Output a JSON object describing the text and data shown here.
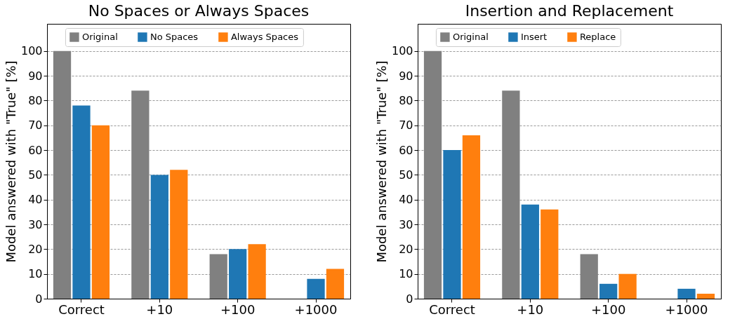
{
  "chart_data": [
    {
      "type": "bar",
      "title": "No Spaces or Always Spaces",
      "ylabel": "Model answered with \"True\" [%]",
      "categories": [
        "Correct",
        "+10",
        "+100",
        "+1000"
      ],
      "series": [
        {
          "name": "Original",
          "color": "#808080",
          "values": [
            100,
            84,
            18,
            0
          ]
        },
        {
          "name": "No Spaces",
          "color": "#1f77b4",
          "values": [
            78,
            50,
            20,
            8
          ]
        },
        {
          "name": "Always Spaces",
          "color": "#ff7f0e",
          "values": [
            70,
            52,
            22,
            12
          ]
        }
      ],
      "ylim": [
        0,
        111
      ],
      "yticks": [
        0,
        10,
        20,
        30,
        40,
        50,
        60,
        70,
        80,
        90,
        100
      ],
      "grid": "y",
      "legend": "top",
      "line_style": "dashed"
    },
    {
      "type": "bar",
      "title": "Insertion and Replacement",
      "ylabel": "Model answered with \"True\" [%]",
      "categories": [
        "Correct",
        "+10",
        "+100",
        "+1000"
      ],
      "series": [
        {
          "name": "Original",
          "color": "#808080",
          "values": [
            100,
            84,
            18,
            0
          ]
        },
        {
          "name": "Insert",
          "color": "#1f77b4",
          "values": [
            60,
            38,
            6,
            4
          ]
        },
        {
          "name": "Replace",
          "color": "#ff7f0e",
          "values": [
            66,
            36,
            10,
            2
          ]
        }
      ],
      "ylim": [
        0,
        111
      ],
      "yticks": [
        0,
        10,
        20,
        30,
        40,
        50,
        60,
        70,
        80,
        90,
        100
      ],
      "grid": "y",
      "legend": "top",
      "line_style": "dashed"
    }
  ]
}
